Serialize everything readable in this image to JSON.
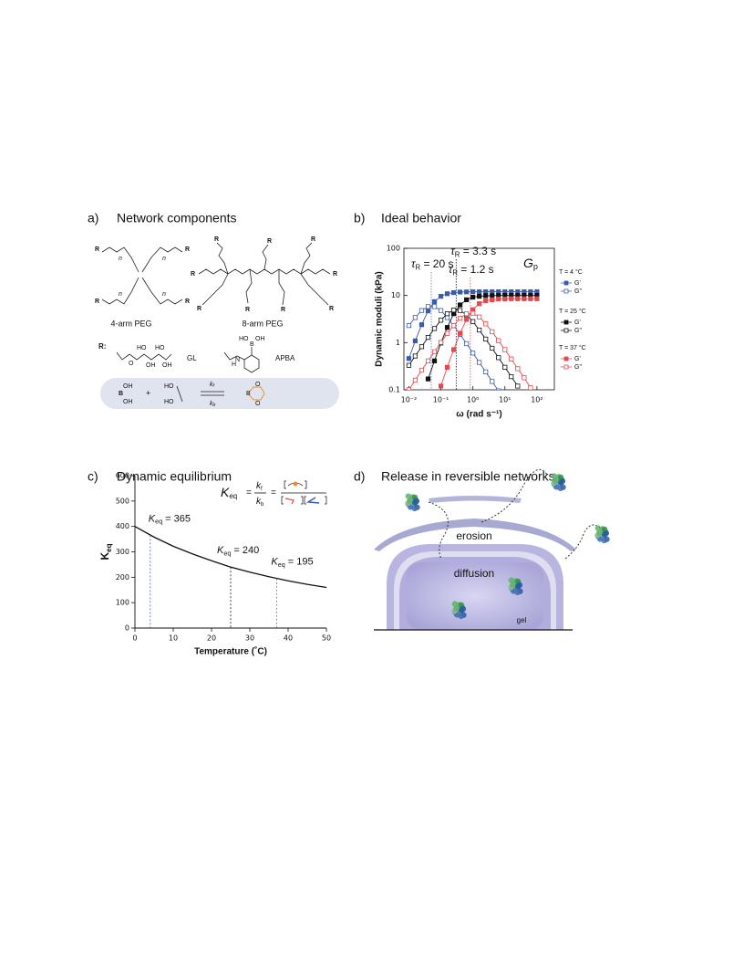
{
  "panel_a": {
    "letter": "a)",
    "title": "Network components",
    "peg4": "4-arm PEG",
    "peg8": "8-arm PEG",
    "r_heading": "R:",
    "gl": "GL",
    "apba": "APBA",
    "r": "R",
    "n": "n",
    "o": "O",
    "ho": "HO",
    "oh": "OH",
    "b": "B",
    "nh": "N",
    "h": "H",
    "plus": "+",
    "k": "k",
    "f": "f",
    "kb": "b"
  },
  "chart_data": [
    {
      "panel": "b)",
      "title": "Ideal behavior",
      "type": "line",
      "xlog": true,
      "ylog": true,
      "xlabel": "ω (rad s⁻¹)",
      "ylabel": "Dynamic moduli (kPa)",
      "xlim": [
        0.007,
        350
      ],
      "ylim": [
        0.1,
        100
      ],
      "xticks": [
        {
          "value": 0.01,
          "label": "10⁻²"
        },
        {
          "value": 0.1,
          "label": "10⁻¹"
        },
        {
          "value": 1,
          "label": "10⁰"
        },
        {
          "value": 10,
          "label": "10¹"
        },
        {
          "value": 100,
          "label": "10²"
        }
      ],
      "yticks": [
        0.1,
        1,
        10,
        100
      ],
      "x": [
        0.01,
        0.0158,
        0.0251,
        0.0398,
        0.0631,
        0.1,
        0.158,
        0.251,
        0.398,
        0.631,
        1,
        1.58,
        2.51,
        3.98,
        6.31,
        10,
        15.8,
        25.1,
        39.8,
        63.1,
        100
      ],
      "groups": [
        {
          "title": "T = 4 °C",
          "series": [
            {
              "name": "G'",
              "color": "#3b5bab",
              "marker": "filled",
              "values": [
                0.46,
                1.09,
                2.4,
                4.7,
                7.4,
                9.6,
                10.9,
                11.5,
                11.8,
                11.9,
                12,
                12,
                12,
                12,
                12,
                12,
                12,
                12,
                12,
                12,
                12
              ]
            },
            {
              "name": "G\"",
              "color": "#3b5bab",
              "marker": "open",
              "values": [
                2.3,
                3.4,
                4.8,
                5.8,
                5.8,
                4.8,
                3.4,
                2.3,
                1.5,
                0.95,
                0.6,
                0.38,
                0.24,
                0.15,
                0.095,
                null,
                null,
                null,
                null,
                null,
                null
              ]
            }
          ]
        },
        {
          "title": "T = 25 °C",
          "series": [
            {
              "name": "G'",
              "color": "#111111",
              "marker": "filled",
              "values": [
                null,
                null,
                null,
                0.17,
                0.41,
                0.98,
                2.1,
                4.1,
                6.3,
                8.1,
                9.2,
                9.6,
                9.9,
                9.9,
                10,
                10,
                10,
                10,
                10,
                10,
                10
              ]
            },
            {
              "name": "G\"",
              "color": "#111111",
              "marker": "open",
              "values": [
                0.33,
                0.52,
                0.82,
                1.29,
                1.99,
                2.98,
                4.1,
                4.9,
                4.8,
                3.9,
                2.8,
                1.85,
                1.19,
                0.76,
                0.48,
                0.3,
                0.19,
                0.12,
                null,
                null,
                null
              ]
            }
          ]
        },
        {
          "title": "T = 37 °C",
          "series": [
            {
              "name": "G'",
              "color": "#e8474c",
              "marker": "filled",
              "values": [
                null,
                null,
                null,
                null,
                null,
                0.12,
                0.3,
                0.71,
                1.58,
                3.1,
                5,
                6.7,
                7.7,
                8.1,
                8.4,
                8.4,
                8.5,
                8.5,
                8.5,
                8.5,
                8.5
              ]
            },
            {
              "name": "G\"",
              "color": "#e8474c",
              "marker": "open",
              "values": [
                0.1,
                0.16,
                0.26,
                0.41,
                0.64,
                1.01,
                1.56,
                2.3,
                3.3,
                4.1,
                4.2,
                3.5,
                2.5,
                1.7,
                1.1,
                0.71,
                0.45,
                0.28,
                0.18,
                0.11,
                null
              ]
            }
          ]
        }
      ],
      "annotations": [
        {
          "symbol": "τ",
          "sub": "R",
          "text": " = 20 s",
          "x": 0.05,
          "color": "#5a74c2"
        },
        {
          "symbol": "τ",
          "sub": "R",
          "text": " = 3.3 s",
          "x": 0.3,
          "color": "#111111"
        },
        {
          "symbol": "τ",
          "sub": "R",
          "text": " = 1.2 s",
          "x": 0.83,
          "color": "#e0474c"
        }
      ],
      "plateau_label": {
        "symbol": "G",
        "sub": "p"
      }
    },
    {
      "panel": "c)",
      "title": "Dynamic equilibrium",
      "type": "line",
      "xlabel": "Temperature (˚C)",
      "ylabel": "K",
      "ylabel_sub": "eq",
      "xlim": [
        0,
        50
      ],
      "ylim": [
        0,
        600
      ],
      "xticks": [
        0,
        10,
        20,
        30,
        40,
        50
      ],
      "yticks": [
        0,
        100,
        200,
        300,
        400,
        500,
        600
      ],
      "x": [
        0,
        5,
        10,
        15,
        20,
        25,
        30,
        35,
        40,
        45,
        50
      ],
      "values": [
        400,
        358,
        322,
        292,
        265,
        240,
        220,
        202,
        186,
        172,
        160
      ],
      "color": "#111111",
      "annotations": [
        {
          "x": 4,
          "y": 365,
          "symbol": "K",
          "sub": "eq",
          "text": " = 365",
          "color": "#4a63b5"
        },
        {
          "x": 25,
          "y": 240,
          "symbol": "K",
          "sub": "eq",
          "text": " = 240",
          "color": "#111111"
        },
        {
          "x": 37,
          "y": 195,
          "symbol": "K",
          "sub": "eq",
          "text": " = 195",
          "color": "#e0474c"
        }
      ],
      "equation": {
        "lhs": "K",
        "lhs_sub": "eq",
        "equals": "=",
        "num": "k",
        "num_sub": "f",
        "den": "k",
        "den_sub": "b"
      }
    }
  ],
  "panel_d": {
    "letter": "d)",
    "title": "Release in reversible networks",
    "erosion": "erosion",
    "diffusion": "diffusion",
    "gel": "gel"
  }
}
